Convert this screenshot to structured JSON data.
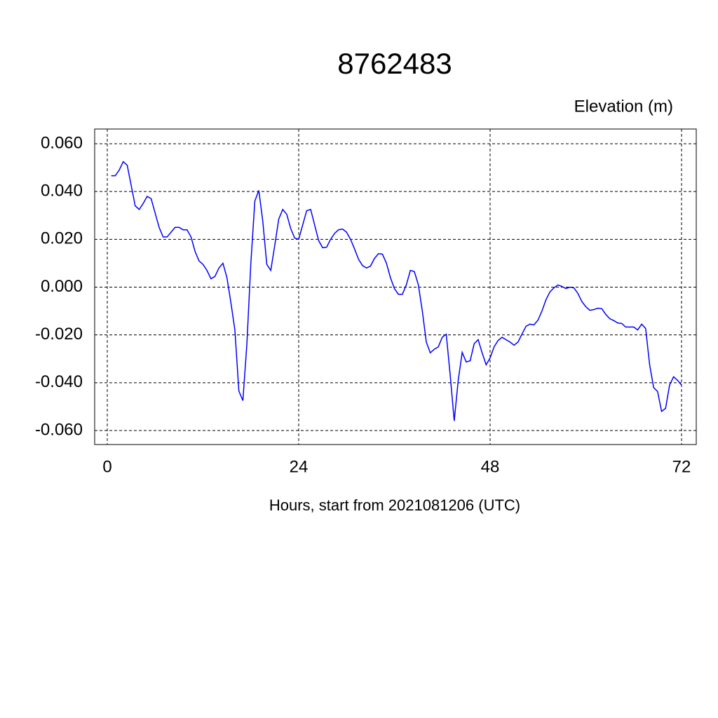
{
  "chart_data": {
    "type": "line",
    "title": "8762483",
    "subtitle": "Elevation (m)",
    "x_label": "Hours, start from 2021081206 (UTC)",
    "x": [
      0.5,
      1,
      1.5,
      2,
      2.5,
      3,
      3.5,
      4,
      4.5,
      5,
      5.5,
      6,
      6.5,
      7,
      7.5,
      8,
      8.5,
      9,
      9.5,
      10,
      10.5,
      11,
      11.5,
      12,
      12.5,
      13,
      13.5,
      14,
      14.5,
      15,
      15.5,
      16,
      16.5,
      17,
      17.5,
      18,
      18.5,
      19,
      19.5,
      20,
      20.5,
      21,
      21.5,
      22,
      22.5,
      23,
      23.5,
      24,
      24.5,
      25,
      25.5,
      26,
      26.5,
      27,
      27.5,
      28,
      28.5,
      29,
      29.5,
      30,
      30.5,
      31,
      31.5,
      32,
      32.5,
      33,
      33.5,
      34,
      34.5,
      35,
      35.5,
      36,
      36.5,
      37,
      37.5,
      38,
      38.5,
      39,
      39.5,
      40,
      40.5,
      41,
      41.5,
      42,
      42.5,
      43,
      43.5,
      44,
      44.5,
      45,
      45.5,
      46,
      46.5,
      47,
      47.5,
      48,
      48.5,
      49,
      49.5,
      50,
      50.5,
      51,
      51.5,
      52,
      52.5,
      53,
      53.5,
      54,
      54.5,
      55,
      55.5,
      56,
      56.5,
      57,
      57.5,
      58,
      58.5,
      59,
      59.5,
      60,
      60.5,
      61,
      61.5,
      62,
      62.5,
      63,
      63.5,
      64,
      64.5,
      65,
      65.5,
      66,
      66.5,
      67,
      67.5,
      68,
      68.5,
      69,
      69.5,
      70,
      70.5,
      71,
      71.5,
      72
    ],
    "series": [
      {
        "name": "Elevation",
        "color": "#0000ff",
        "values": [
          0.0466,
          0.0466,
          0.049,
          0.0525,
          0.051,
          0.0425,
          0.034,
          0.0325,
          0.035,
          0.038,
          0.037,
          0.031,
          0.025,
          0.021,
          0.021,
          0.023,
          0.025,
          0.025,
          0.024,
          0.024,
          0.021,
          0.015,
          0.011,
          0.0095,
          0.007,
          0.0035,
          0.0045,
          0.008,
          0.01,
          0.004,
          -0.0065,
          -0.018,
          -0.0435,
          -0.0475,
          -0.024,
          0.01,
          0.036,
          0.0405,
          0.0275,
          0.0095,
          0.007,
          0.0175,
          0.0285,
          0.0325,
          0.0305,
          0.0245,
          0.0205,
          0.02,
          0.026,
          0.032,
          0.0325,
          0.026,
          0.0195,
          0.0165,
          0.0167,
          0.02,
          0.0225,
          0.024,
          0.0243,
          0.023,
          0.02,
          0.016,
          0.0117,
          0.009,
          0.008,
          0.0088,
          0.012,
          0.014,
          0.0138,
          0.01,
          0.004,
          -0.0006,
          -0.003,
          -0.003,
          0.001,
          0.007,
          0.0065,
          0.001,
          -0.01,
          -0.023,
          -0.0275,
          -0.026,
          -0.025,
          -0.021,
          -0.0197,
          -0.037,
          -0.056,
          -0.039,
          -0.0273,
          -0.0313,
          -0.0308,
          -0.0237,
          -0.022,
          -0.0275,
          -0.0325,
          -0.0296,
          -0.025,
          -0.0223,
          -0.021,
          -0.022,
          -0.023,
          -0.0243,
          -0.023,
          -0.0196,
          -0.0164,
          -0.0155,
          -0.0158,
          -0.0138,
          -0.01,
          -0.0053,
          -0.002,
          -0.0003,
          0.0009,
          0.0003,
          -0.0006,
          0,
          -0.0003,
          -0.0026,
          -0.006,
          -0.0082,
          -0.0097,
          -0.0094,
          -0.0088,
          -0.009,
          -0.0114,
          -0.0132,
          -0.014,
          -0.015,
          -0.0152,
          -0.0167,
          -0.0167,
          -0.0167,
          -0.0179,
          -0.0155,
          -0.0173,
          -0.0325,
          -0.042,
          -0.0437,
          -0.052,
          -0.0507,
          -0.041,
          -0.0375,
          -0.039,
          -0.041
        ]
      }
    ],
    "xlim": [
      0,
      72
    ],
    "xticks": [
      0,
      24,
      48,
      72
    ],
    "ylim": [
      -0.06,
      0.06
    ],
    "yticks": [
      {
        "value": -0.06,
        "label": "-0.060"
      },
      {
        "value": -0.04,
        "label": "-0.040"
      },
      {
        "value": -0.02,
        "label": "-0.020"
      },
      {
        "value": 0,
        "label": "0.000"
      },
      {
        "value": 0.02,
        "label": "0.020"
      },
      {
        "value": 0.04,
        "label": "0.040"
      },
      {
        "value": 0.06,
        "label": "0.060"
      }
    ],
    "grid": true
  }
}
